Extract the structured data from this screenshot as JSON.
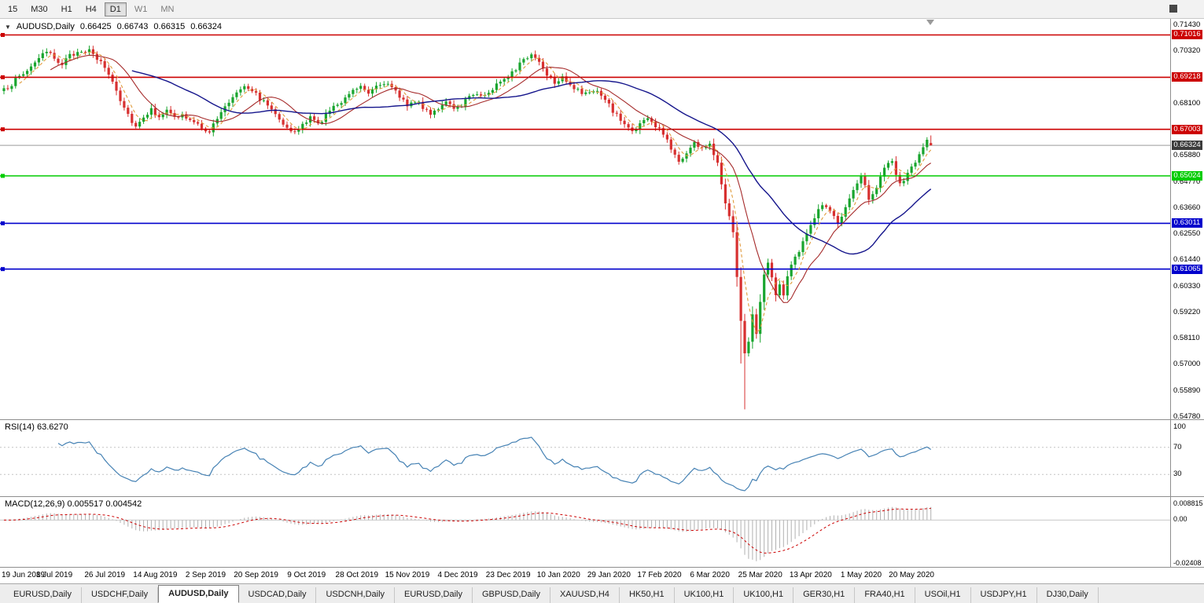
{
  "toolbar": {
    "selected": "D1",
    "timeframes": [
      {
        "label": "15"
      },
      {
        "label": "M30"
      },
      {
        "label": "H1"
      },
      {
        "label": "H4"
      },
      {
        "label": "D1"
      },
      {
        "label": "W1",
        "muted": true
      },
      {
        "label": "MN",
        "muted": true
      }
    ]
  },
  "chart": {
    "symbol": "AUDUSD,Daily",
    "icons": {
      "dropdown": "▼"
    },
    "ohlc": {
      "o": "0.66425",
      "h": "0.66743",
      "l": "0.66315",
      "c": "0.66324"
    },
    "price_axis": {
      "ticks": [
        "0.71430",
        "0.70320",
        "0.69210",
        "0.68100",
        "0.66990",
        "0.65880",
        "0.64770",
        "0.63660",
        "0.62550",
        "0.61440",
        "0.60330",
        "0.59220",
        "0.58110",
        "0.57000",
        "0.55890",
        "0.54780"
      ]
    },
    "levels": [
      {
        "label": "0.71016",
        "value": 0.71016,
        "color": "#cc0000"
      },
      {
        "label": "0.69218",
        "value": 0.69218,
        "color": "#cc0000"
      },
      {
        "label": "0.67003",
        "value": 0.67003,
        "color": "#cc0000"
      },
      {
        "label": "0.65024",
        "value": 0.65024,
        "color": "#00cc00"
      },
      {
        "label": "0.63011",
        "value": 0.63011,
        "color": "#0000cc"
      },
      {
        "label": "0.61065",
        "value": 0.61065,
        "color": "#0000cc"
      }
    ],
    "current_price": {
      "label": "0.66324",
      "value": 0.66324,
      "box_color": "#3c3c3c",
      "line_color": "#9a9a9a"
    },
    "dates": [
      "19 Jun 2019",
      "8 Jul 2019",
      "26 Jul 2019",
      "14 Aug 2019",
      "2 Sep 2019",
      "20 Sep 2019",
      "9 Oct 2019",
      "28 Oct 2019",
      "15 Nov 2019",
      "4 Dec 2019",
      "23 Dec 2019",
      "10 Jan 2020",
      "29 Jan 2020",
      "17 Feb 2020",
      "6 Mar 2020",
      "25 Mar 2020",
      "13 Apr 2020",
      "1 May 2020",
      "20 May 2020"
    ],
    "chart_data": {
      "type": "candlestick",
      "symbol": "AUDUSD",
      "timeframe": "Daily",
      "ylim": [
        0.5468,
        0.717
      ],
      "candle_count": 240,
      "up_color": "#19a52e",
      "down_color": "#d73030",
      "noise": 0.0011,
      "close_anchors": [
        [
          0,
          0.6865
        ],
        [
          2,
          0.6895
        ],
        [
          4,
          0.6925
        ],
        [
          6,
          0.695
        ],
        [
          8,
          0.699
        ],
        [
          11,
          0.7025
        ],
        [
          13,
          0.7005
        ],
        [
          15,
          0.698
        ],
        [
          17,
          0.701
        ],
        [
          20,
          0.704
        ],
        [
          22,
          0.703
        ],
        [
          24,
          0.7
        ],
        [
          26,
          0.6965
        ],
        [
          28,
          0.6905
        ],
        [
          30,
          0.683
        ],
        [
          32,
          0.6765
        ],
        [
          34,
          0.6712
        ],
        [
          36,
          0.6758
        ],
        [
          38,
          0.6782
        ],
        [
          40,
          0.676
        ],
        [
          42,
          0.6778
        ],
        [
          44,
          0.6748
        ],
        [
          46,
          0.6762
        ],
        [
          48,
          0.6735
        ],
        [
          50,
          0.6718
        ],
        [
          53,
          0.6692
        ],
        [
          55,
          0.6745
        ],
        [
          57,
          0.6795
        ],
        [
          60,
          0.6862
        ],
        [
          62,
          0.6892
        ],
        [
          64,
          0.6868
        ],
        [
          66,
          0.6832
        ],
        [
          68,
          0.6802
        ],
        [
          70,
          0.6775
        ],
        [
          73,
          0.6702
        ],
        [
          75,
          0.6682
        ],
        [
          77,
          0.6722
        ],
        [
          79,
          0.6748
        ],
        [
          81,
          0.6722
        ],
        [
          83,
          0.6762
        ],
        [
          85,
          0.6792
        ],
        [
          87,
          0.6822
        ],
        [
          89,
          0.6858
        ],
        [
          92,
          0.6888
        ],
        [
          94,
          0.6862
        ],
        [
          96,
          0.6888
        ],
        [
          98,
          0.6902
        ],
        [
          100,
          0.6872
        ],
        [
          102,
          0.6842
        ],
        [
          104,
          0.6808
        ],
        [
          106,
          0.6822
        ],
        [
          108,
          0.6792
        ],
        [
          110,
          0.6772
        ],
        [
          112,
          0.6792
        ],
        [
          114,
          0.6812
        ],
        [
          116,
          0.6782
        ],
        [
          118,
          0.6808
        ],
        [
          120,
          0.6842
        ],
        [
          122,
          0.6858
        ],
        [
          124,
          0.6842
        ],
        [
          126,
          0.6872
        ],
        [
          128,
          0.6908
        ],
        [
          130,
          0.6932
        ],
        [
          132,
          0.6962
        ],
        [
          134,
          0.6992
        ],
        [
          136,
          0.7022
        ],
        [
          138,
          0.6988
        ],
        [
          140,
          0.6938
        ],
        [
          142,
          0.6902
        ],
        [
          144,
          0.6928
        ],
        [
          146,
          0.6892
        ],
        [
          148,
          0.6862
        ],
        [
          150,
          0.6848
        ],
        [
          152,
          0.6872
        ],
        [
          154,
          0.6842
        ],
        [
          156,
          0.6802
        ],
        [
          158,
          0.6758
        ],
        [
          160,
          0.6722
        ],
        [
          162,
          0.6692
        ],
        [
          164,
          0.6722
        ],
        [
          166,
          0.6748
        ],
        [
          168,
          0.6712
        ],
        [
          170,
          0.6682
        ],
        [
          172,
          0.6622
        ],
        [
          174,
          0.6562
        ],
        [
          176,
          0.6602
        ],
        [
          178,
          0.6642
        ],
        [
          180,
          0.6622
        ],
        [
          182,
          0.6632
        ],
        [
          184,
          0.6562
        ],
        [
          186,
          0.6392
        ],
        [
          188,
          0.6272
        ],
        [
          190,
          0.5892
        ],
        [
          191,
          0.5742
        ],
        [
          192,
          0.5802
        ],
        [
          193,
          0.5922
        ],
        [
          194,
          0.5832
        ],
        [
          195,
          0.5962
        ],
        [
          196,
          0.6082
        ],
        [
          197,
          0.6142
        ],
        [
          198,
          0.6062
        ],
        [
          199,
          0.5992
        ],
        [
          200,
          0.6052
        ],
        [
          201,
          0.5988
        ],
        [
          202,
          0.6072
        ],
        [
          203,
          0.6122
        ],
        [
          205,
          0.6182
        ],
        [
          207,
          0.6252
        ],
        [
          209,
          0.6332
        ],
        [
          211,
          0.6382
        ],
        [
          213,
          0.6352
        ],
        [
          215,
          0.6302
        ],
        [
          217,
          0.6362
        ],
        [
          219,
          0.6432
        ],
        [
          221,
          0.6512
        ],
        [
          223,
          0.6412
        ],
        [
          225,
          0.6452
        ],
        [
          227,
          0.6532
        ],
        [
          229,
          0.6562
        ],
        [
          231,
          0.6462
        ],
        [
          233,
          0.6512
        ],
        [
          235,
          0.6562
        ],
        [
          237,
          0.6622
        ],
        [
          238,
          0.6652
        ],
        [
          239,
          0.66324
        ]
      ],
      "overrides": [
        {
          "i": 239,
          "o": 0.66425,
          "h": 0.66743,
          "l": 0.66315,
          "c": 0.66324
        },
        {
          "i": 191,
          "l": 0.551
        },
        {
          "i": 190,
          "l": 0.5705
        }
      ],
      "moving_averages": [
        {
          "period": 5,
          "color": "#e09c3c",
          "dash": "4 3"
        },
        {
          "period": 13,
          "color": "#a52a2a",
          "dash": ""
        },
        {
          "period": 34,
          "color": "#15158c",
          "dash": ""
        }
      ]
    }
  },
  "rsi": {
    "label": "RSI(14) 63.6270",
    "period": 14,
    "line_color": "#4682b4",
    "levels": [
      70,
      30
    ],
    "ticks": [
      "100",
      "70",
      "30"
    ]
  },
  "macd": {
    "label": "MACD(12,26,9) 0.005517 0.004542",
    "fast": 12,
    "slow": 26,
    "signal": 9,
    "bar_color": "#b0b0b0",
    "signal_color": "#cc0000",
    "scale_max": 0.008815,
    "scale_min": -0.02408,
    "ticks": [
      "0.008815",
      "0.00",
      "-0.02408"
    ]
  },
  "tabs": [
    {
      "label": "EURUSD,Daily"
    },
    {
      "label": "USDCHF,Daily"
    },
    {
      "label": "AUDUSD,Daily",
      "selected": true
    },
    {
      "label": "USDCAD,Daily"
    },
    {
      "label": "USDCNH,Daily"
    },
    {
      "label": "EURUSD,Daily"
    },
    {
      "label": "GBPUSD,Daily"
    },
    {
      "label": "XAUUSD,H4"
    },
    {
      "label": "HK50,H1"
    },
    {
      "label": "UK100,H1"
    },
    {
      "label": "UK100,H1"
    },
    {
      "label": "GER30,H1"
    },
    {
      "label": "FRA40,H1"
    },
    {
      "label": "USOil,H1"
    },
    {
      "label": "USDJPY,H1"
    },
    {
      "label": "DJ30,Daily"
    }
  ]
}
